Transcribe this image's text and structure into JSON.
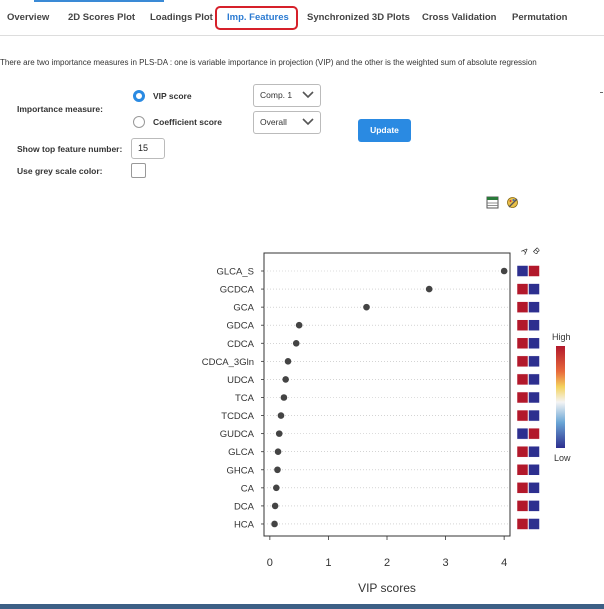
{
  "tabs": [
    "Overview",
    "2D Scores Plot",
    "Loadings Plot",
    "Imp. Features",
    "Synchronized 3D Plots",
    "Cross Validation",
    "Permutation"
  ],
  "description": "There are two importance measures in PLS-DA : one is variable importance in projection (VIP) and the other is the weighted sum of absolute regression",
  "form": {
    "importance_label": "Importance measure:",
    "vip_label": "VIP score",
    "coef_label": "Coefficient score",
    "comp_value": "Comp. 1",
    "overall_value": "Overall",
    "update_label": "Update",
    "top_label": "Show top feature number:",
    "top_value": "15",
    "grey_label": "Use grey scale color:"
  },
  "icons": {
    "table": "table-icon",
    "settings": "palette-settings-icon"
  },
  "colors": {
    "accent": "#2a8ae2",
    "high": "#b2182b",
    "low": "#2d2f8f",
    "highlight": "#d6202a"
  },
  "chart_data": {
    "type": "scatter",
    "features": [
      "GLCA_S",
      "GCDCA",
      "GCA",
      "GDCA",
      "CDCA",
      "CDCA_3Gln",
      "UDCA",
      "TCA",
      "TCDCA",
      "GUDCA",
      "GLCA",
      "GHCA",
      "CA",
      "DCA",
      "HCA"
    ],
    "values": [
      4.0,
      2.72,
      1.65,
      0.5,
      0.45,
      0.31,
      0.27,
      0.24,
      0.19,
      0.16,
      0.14,
      0.13,
      0.11,
      0.09,
      0.08
    ],
    "xlabel": "VIP scores",
    "xticks": [
      0,
      1,
      2,
      3,
      4
    ],
    "xlim": [
      -0.1,
      4.1
    ],
    "groups": [
      "A",
      "B"
    ],
    "heat": [
      [
        "low",
        "high"
      ],
      [
        "high",
        "low"
      ],
      [
        "high",
        "low"
      ],
      [
        "high",
        "low"
      ],
      [
        "high",
        "low"
      ],
      [
        "high",
        "low"
      ],
      [
        "high",
        "low"
      ],
      [
        "high",
        "low"
      ],
      [
        "high",
        "low"
      ],
      [
        "low",
        "high"
      ],
      [
        "high",
        "low"
      ],
      [
        "high",
        "low"
      ],
      [
        "high",
        "low"
      ],
      [
        "high",
        "low"
      ],
      [
        "high",
        "low"
      ]
    ],
    "legend": {
      "high": "High",
      "low": "Low"
    }
  }
}
